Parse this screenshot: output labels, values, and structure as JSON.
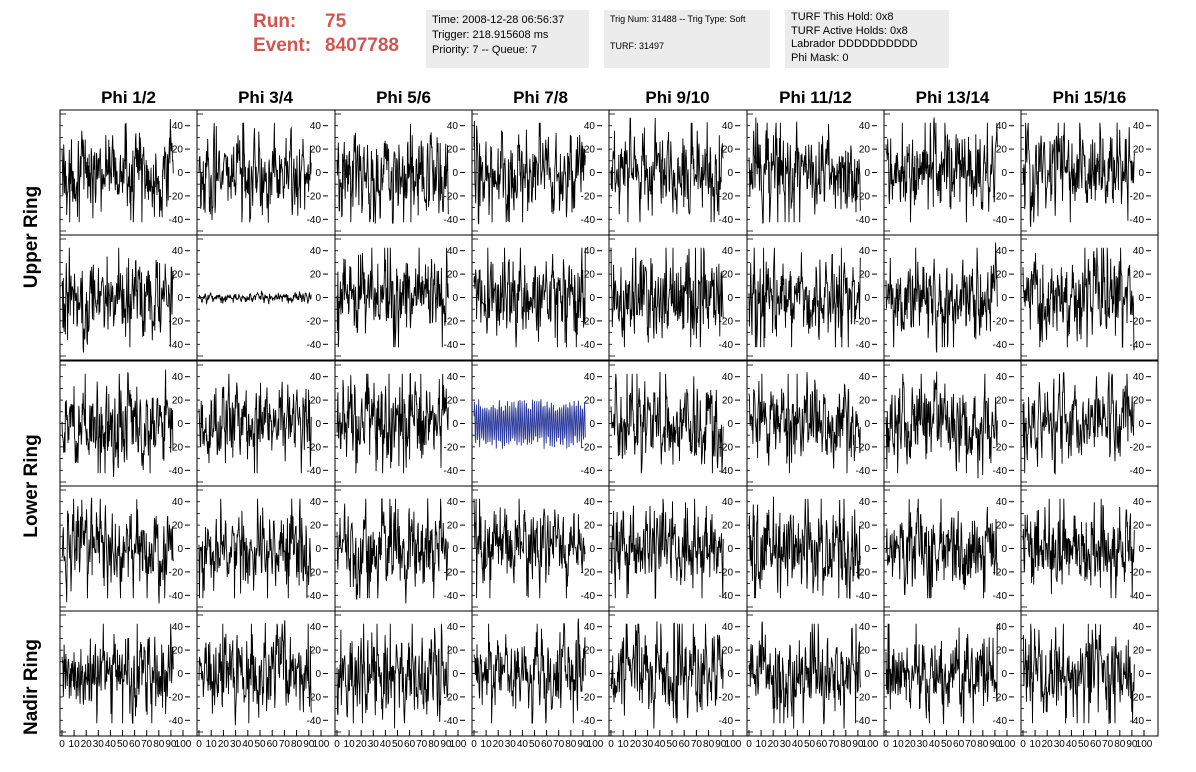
{
  "header": {
    "run_label": "Run:",
    "run_value": "75",
    "event_label": "Event:",
    "event_value": "8407788",
    "time_box": [
      "Time: 2008-12-28 06:56:37",
      "Trigger: 218.915608 ms",
      "Priority: 7 -- Queue: 7"
    ],
    "trig_box": [
      "Trig Num: 31488 -- Trig Type: Soft",
      "",
      "TURF: 31497"
    ],
    "turf_box": [
      "TURF This Hold: 0x8",
      "TURF Active Holds: 0x8",
      "Labrador DDDDDDDDDD",
      "Phi Mask: 0"
    ]
  },
  "colors": {
    "header_text": "#d4544f",
    "info_box_bg": "#ececec",
    "trace": "#000000",
    "highlight_trace": "#2b3a9c"
  },
  "columns": [
    "Phi 1/2",
    "Phi 3/4",
    "Phi 5/6",
    "Phi 7/8",
    "Phi 9/10",
    "Phi 11/12",
    "Phi 13/14",
    "Phi 15/16"
  ],
  "rows": [
    "Upper Ring",
    "",
    "Lower Ring",
    "",
    "Nadir Ring"
  ],
  "chart_data": {
    "type": "line",
    "layout": "grid of 5 rows x 8 columns of waveform panels",
    "xlim": [
      0,
      100
    ],
    "ylim": [
      -50,
      50
    ],
    "x_ticks": [
      0,
      10,
      20,
      30,
      40,
      50,
      60,
      70,
      80,
      90,
      100
    ],
    "x_tick_labels": [
      "0",
      "10",
      "20",
      "30",
      "40",
      "50",
      "60",
      "70",
      "80",
      "90",
      "100"
    ],
    "y_ticks": [
      -40,
      -20,
      0,
      20,
      40
    ],
    "y_tick_labels": [
      "-40",
      "-20",
      "0",
      "20",
      "40"
    ],
    "samples_per_trace": 260,
    "amplitude_typical": 25,
    "low_amplitude_panel": {
      "row": 1,
      "col": 1,
      "amplitude": 3
    },
    "highlight_panel": {
      "row": 2,
      "col": 3,
      "amplitude": 22,
      "color": "#2b3a9c"
    }
  }
}
